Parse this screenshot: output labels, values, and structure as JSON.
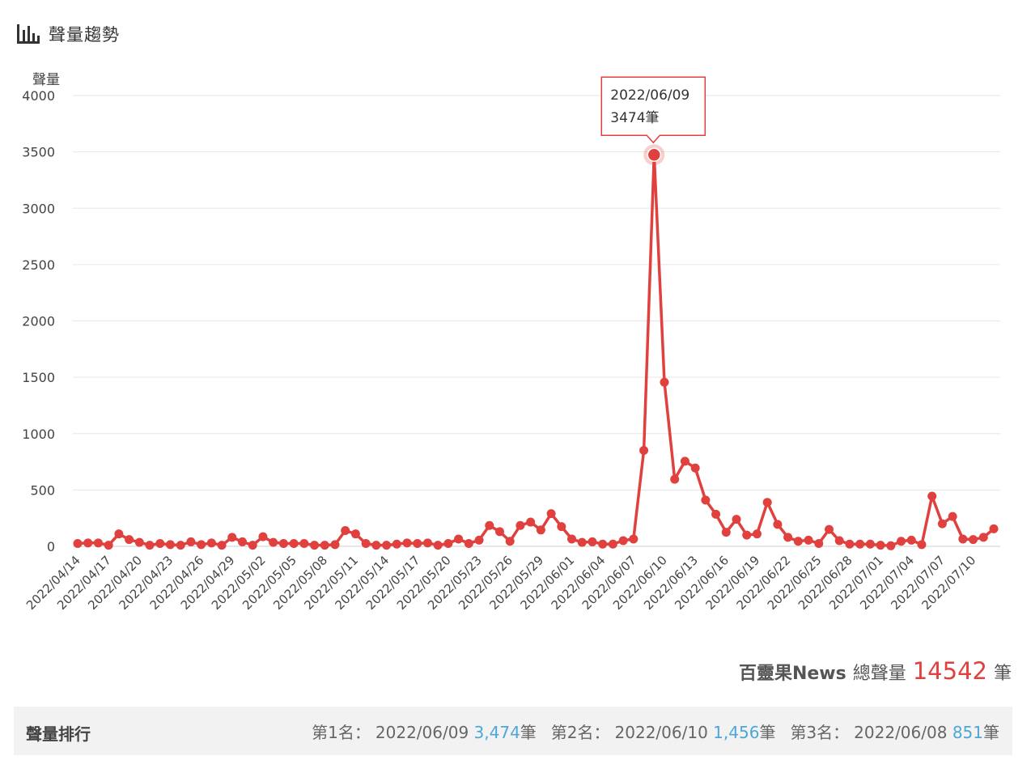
{
  "header": {
    "title": "聲量趨勢",
    "icon": "bar-chart-icon"
  },
  "summary": {
    "source": "百靈果News",
    "label": "總聲量",
    "total": "14542",
    "unit": "筆"
  },
  "ranking": {
    "title": "聲量排行",
    "items": [
      {
        "label": "第1名：",
        "date": "2022/06/09",
        "value": "3,474",
        "unit": "筆"
      },
      {
        "label": "第2名：",
        "date": "2022/06/10",
        "value": "1,456",
        "unit": "筆"
      },
      {
        "label": "第3名：",
        "date": "2022/06/08",
        "value": "851",
        "unit": "筆"
      }
    ]
  },
  "colors": {
    "line": "#e0403e",
    "grid": "#e6e6e6",
    "rank_value": "#4ea6d8"
  },
  "chart_data": {
    "type": "line",
    "ylabel": "聲量",
    "ylim": [
      0,
      4000
    ],
    "yticks": [
      0,
      500,
      1000,
      1500,
      2000,
      2500,
      3000,
      3500,
      4000
    ],
    "grid": true,
    "x_tick_labels": [
      "2022/04/14",
      "2022/04/17",
      "2022/04/20",
      "2022/04/23",
      "2022/04/26",
      "2022/04/29",
      "2022/05/02",
      "2022/05/05",
      "2022/05/08",
      "2022/05/11",
      "2022/05/14",
      "2022/05/17",
      "2022/05/20",
      "2022/05/23",
      "2022/05/26",
      "2022/05/29",
      "2022/06/01",
      "2022/06/04",
      "2022/06/07",
      "2022/06/10",
      "2022/06/13",
      "2022/06/16",
      "2022/06/19",
      "2022/06/22",
      "2022/06/25",
      "2022/06/28",
      "2022/07/01",
      "2022/07/04",
      "2022/07/07",
      "2022/07/10"
    ],
    "start_date": "2022-04-14",
    "series": [
      {
        "values": [
          25,
          30,
          30,
          10,
          110,
          60,
          35,
          10,
          25,
          15,
          10,
          40,
          15,
          30,
          10,
          80,
          40,
          10,
          85,
          35,
          25,
          25,
          25,
          10,
          10,
          15,
          140,
          110,
          25,
          10,
          10,
          20,
          30,
          25,
          30,
          10,
          25,
          65,
          25,
          55,
          185,
          130,
          45,
          185,
          215,
          145,
          290,
          175,
          65,
          35,
          40,
          20,
          20,
          50,
          65,
          851,
          3474,
          1456,
          595,
          755,
          695,
          410,
          285,
          125,
          240,
          100,
          110,
          390,
          195,
          80,
          45,
          55,
          25,
          150,
          50,
          20,
          20,
          20,
          10,
          5,
          45,
          55,
          15,
          445,
          200,
          265,
          65,
          60,
          80,
          155
        ]
      }
    ],
    "tooltip": {
      "date": "2022/06/09",
      "value": "3474",
      "unit": "筆"
    }
  }
}
